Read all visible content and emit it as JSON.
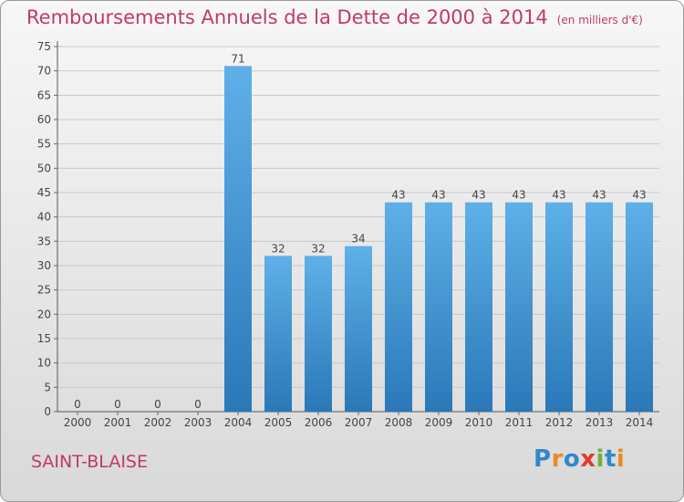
{
  "title": "Remboursements Annuels de la Dette de 2000 à 2014",
  "unit_note": "(en milliers d'€)",
  "place": "SAINT-BLAISE",
  "logo": {
    "text": "Proxiti",
    "letters": [
      {
        "ch": "P",
        "color": "#2f88c9"
      },
      {
        "ch": "r",
        "color": "#e98a25"
      },
      {
        "ch": "o",
        "color": "#2f88c9"
      },
      {
        "ch": "x",
        "color": "#e23b2f"
      },
      {
        "ch": "i",
        "color": "#6fb13b"
      },
      {
        "ch": "t",
        "color": "#2f88c9"
      },
      {
        "ch": "i",
        "color": "#e98a25"
      }
    ]
  },
  "colors": {
    "title": "#c03a6a",
    "bar_top": "#5fb0e8",
    "bar_bottom": "#2a78b8",
    "grid": "#c8c8c8"
  },
  "chart_data": {
    "type": "bar",
    "categories": [
      "2000",
      "2001",
      "2002",
      "2003",
      "2004",
      "2005",
      "2006",
      "2007",
      "2008",
      "2009",
      "2010",
      "2011",
      "2012",
      "2013",
      "2014"
    ],
    "values": [
      0,
      0,
      0,
      0,
      71,
      32,
      32,
      34,
      43,
      43,
      43,
      43,
      43,
      43,
      43
    ],
    "data_labels": [
      "0",
      "0",
      "0",
      "0",
      "71",
      "32",
      "32",
      "34",
      "43",
      "43",
      "43",
      "43",
      "43",
      "43",
      "43"
    ],
    "ylim": [
      0,
      75
    ],
    "yticks": [
      0,
      5,
      10,
      15,
      20,
      25,
      30,
      35,
      40,
      45,
      50,
      55,
      60,
      65,
      70,
      75
    ],
    "grid": true,
    "xlabel": "",
    "ylabel": ""
  }
}
